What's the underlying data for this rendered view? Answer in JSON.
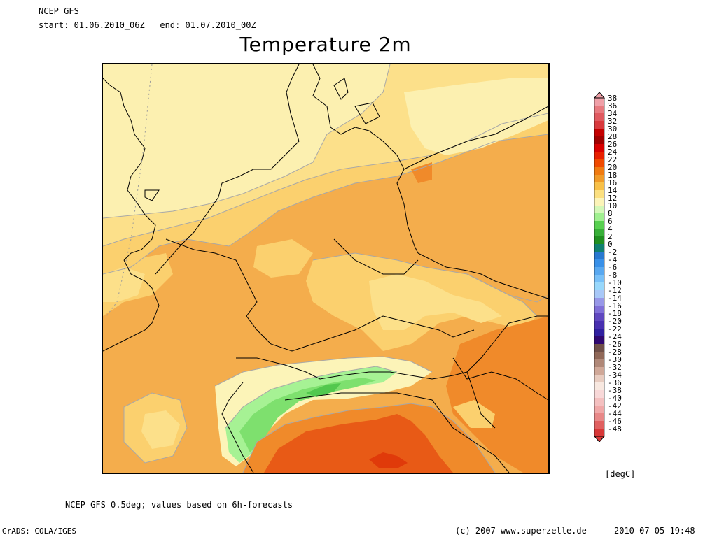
{
  "header": {
    "model": "NCEP GFS",
    "period": "start: 01.06.2010_06Z   end: 01.07.2010_00Z",
    "title": "Temperature 2m"
  },
  "map": {
    "field": "2m temperature",
    "region": "Central Europe",
    "colors": {
      "t12_14": "#fcf0b0",
      "t14_16": "#fce08a",
      "t16_18": "#fbd06e",
      "t18_20": "#f4ad4c",
      "t20_22": "#f08a2a",
      "t22_24": "#e85a16",
      "t24_26": "#e03a0a",
      "t8_10": "#a6f294",
      "t6_8": "#7ee06e",
      "t4_6": "#52c84e",
      "contour": "#a8a8a8",
      "coast": "#000000"
    }
  },
  "colorbar": {
    "labels": [
      "38",
      "36",
      "34",
      "32",
      "30",
      "28",
      "26",
      "24",
      "22",
      "20",
      "18",
      "16",
      "14",
      "12",
      "10",
      "8",
      "6",
      "4",
      "2",
      "0",
      "-2",
      "-4",
      "-6",
      "-8",
      "-10",
      "-12",
      "-14",
      "-16",
      "-18",
      "-20",
      "-22",
      "-24",
      "-26",
      "-28",
      "-30",
      "-32",
      "-34",
      "-36",
      "-38",
      "-40",
      "-42",
      "-44",
      "-46",
      "-48"
    ],
    "colors": [
      "#f0a0a8",
      "#e87a80",
      "#e05a60",
      "#d83a3e",
      "#c40000",
      "#a00000",
      "#d80000",
      "#e82000",
      "#f04a00",
      "#f07a10",
      "#f09a28",
      "#f8c048",
      "#fce080",
      "#fcf4b8",
      "#d4f8b8",
      "#a0f090",
      "#58d050",
      "#38b038",
      "#209020",
      "#108070",
      "#2878d0",
      "#3890e8",
      "#58a8f0",
      "#78c0f8",
      "#98d8fc",
      "#a8c8f8",
      "#9898e8",
      "#8070d8",
      "#6048c0",
      "#4830b0",
      "#3020a0",
      "#300870",
      "#705048",
      "#906858",
      "#b08878",
      "#d0a898",
      "#e8ccc0",
      "#f8e8e0",
      "#f8d8d8",
      "#f4c0c0",
      "#f0a8a8",
      "#e88888",
      "#e06060",
      "#d83838"
    ],
    "unit": "[degC]"
  },
  "footer": {
    "note": "NCEP GFS 0.5deg; values based on 6h-forecasts",
    "software": "GrADS: COLA/IGES",
    "copyright": "(c) 2007 www.superzelle.de",
    "timestamp": "2010-07-05-19:48"
  }
}
